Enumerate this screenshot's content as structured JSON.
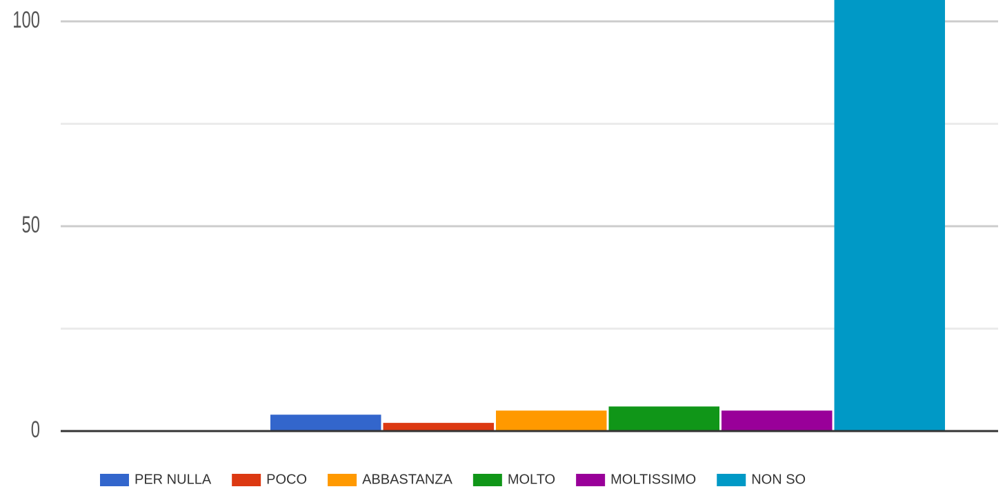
{
  "chart_data": {
    "type": "bar",
    "categories": [
      null
    ],
    "series": [
      {
        "name": "PER NULLA",
        "color": "#3366cc",
        "values": [
          4
        ]
      },
      {
        "name": "POCO",
        "color": "#dc3912",
        "values": [
          2
        ]
      },
      {
        "name": "ABBASTANZA",
        "color": "#ff9900",
        "values": [
          5
        ]
      },
      {
        "name": "MOLTO",
        "color": "#109618",
        "values": [
          6
        ]
      },
      {
        "name": "MOLTISSIMO",
        "color": "#990099",
        "values": [
          5
        ]
      },
      {
        "name": "NON SO",
        "color": "#0099c6",
        "values": [
          110
        ]
      }
    ],
    "ylim": [
      0,
      105
    ],
    "yticks": [
      0,
      50,
      100
    ],
    "minor_yticks": [
      25,
      75
    ],
    "grid": true,
    "legend": "bottom"
  }
}
